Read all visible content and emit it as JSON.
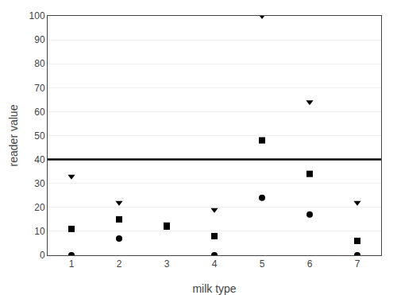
{
  "chart_data": {
    "type": "scatter",
    "x_label": "milk type",
    "y_label": "reader value",
    "x": [
      1,
      2,
      3,
      4,
      5,
      6,
      7
    ],
    "series": [
      {
        "color": "#000000",
        "marker": "triangle-down",
        "values": [
          33,
          22,
          13,
          19,
          100,
          64,
          22
        ]
      },
      {
        "color": "#000000",
        "marker": "square",
        "values": [
          11,
          15,
          12,
          8,
          48,
          34,
          6
        ]
      },
      {
        "color": "#000000",
        "marker": "circle",
        "values": [
          0,
          7,
          12,
          0,
          24,
          17,
          0
        ]
      }
    ],
    "hlines": [
      {
        "value": 40,
        "color": "#000000"
      }
    ],
    "xlim": [
      0.5,
      7.5
    ],
    "xticks": [
      1,
      2,
      3,
      4,
      5,
      6,
      7
    ],
    "ylim": [
      0,
      100
    ],
    "yticks": [
      0,
      10,
      20,
      30,
      40,
      50,
      60,
      70,
      80,
      90,
      100
    ],
    "grid": "y"
  }
}
